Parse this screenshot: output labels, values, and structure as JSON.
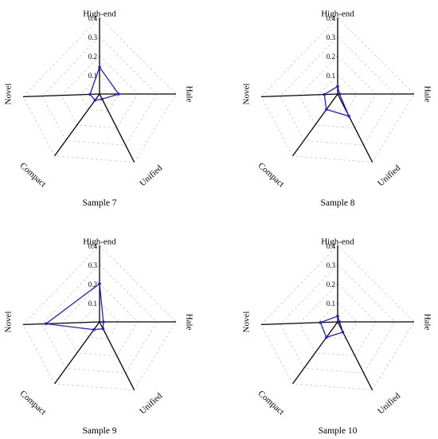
{
  "chart_data": [
    {
      "type": "radar",
      "title": "Sample 7",
      "axes": [
        "High-end",
        "Hale",
        "Unified",
        "Compact",
        "Novel"
      ],
      "ticks": [
        "0.1",
        "0.2",
        "0.3",
        "0.4"
      ],
      "rlim": [
        0,
        0.4
      ],
      "series": [
        {
          "values": [
            0.14,
            0.1,
            0.03,
            0.04,
            0.05
          ]
        }
      ]
    },
    {
      "type": "radar",
      "title": "Sample 8",
      "axes": [
        "High-end",
        "Hale",
        "Unified",
        "Compact",
        "Novel"
      ],
      "ticks": [
        "0.1",
        "0.2",
        "0.3",
        "0.4"
      ],
      "rlim": [
        0,
        0.4
      ],
      "series": [
        {
          "values": [
            0.04,
            0.01,
            0.13,
            0.1,
            0.07
          ]
        }
      ]
    },
    {
      "type": "radar",
      "title": "Sample 9",
      "axes": [
        "High-end",
        "Hale",
        "Unified",
        "Compact",
        "Novel"
      ],
      "ticks": [
        "0.1",
        "0.2",
        "0.3",
        "0.4"
      ],
      "rlim": [
        0,
        0.4
      ],
      "series": [
        {
          "values": [
            0.2,
            0.02,
            0.04,
            0.05,
            0.28
          ]
        }
      ]
    },
    {
      "type": "radar",
      "title": "Sample 10",
      "axes": [
        "High-end",
        "Hale",
        "Unified",
        "Compact",
        "Novel"
      ],
      "ticks": [
        "0.1",
        "0.2",
        "0.3",
        "0.4"
      ],
      "rlim": [
        0,
        0.4
      ],
      "series": [
        {
          "values": [
            0.03,
            0.01,
            0.06,
            0.1,
            0.09
          ]
        }
      ]
    }
  ]
}
